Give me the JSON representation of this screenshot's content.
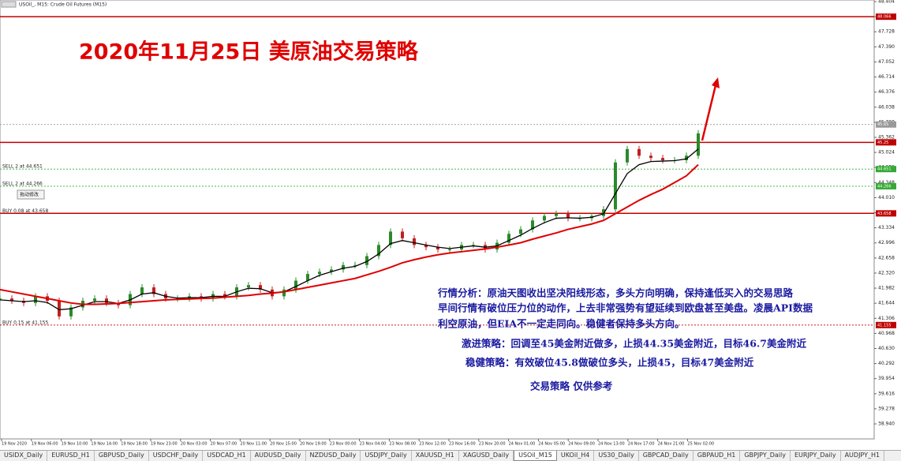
{
  "window_title": "USOil_, M15: Crude Oil Futures (M15)",
  "button": "拖动修改",
  "chart_data": {
    "type": "candlestick",
    "title": "2020年11月25日  美原油交易策略",
    "annotations": [
      "行情分析：原油天图收出坚决阳线形态，多头方向明确，保持逢低买入的交易思路",
      "早间行情有破位压力位的动作，上去非常强势有望延续到欧盘甚至美盘。凌晨API数据",
      "利空原油，但EIA不一定走同向。稳健者保持多头方向。",
      "激进策略：回调至45美金附近做多，止损44.35美金附近，目标46.7美金附近",
      "稳健策略：有效破位45.8做破位多头，止损45，目标47美金附近",
      "交易策略    仅供参考"
    ],
    "xlabels": [
      "19 Nov 2020",
      "19 Nov 06:00",
      "19 Nov 10:00",
      "19 Nov 14:00",
      "19 Nov 18:00",
      "19 Nov 23:00",
      "20 Nov 03:00",
      "20 Nov 07:00",
      "20 Nov 11:00",
      "20 Nov 15:00",
      "20 Nov 19:00",
      "23 Nov 00:00",
      "23 Nov 04:00",
      "23 Nov 08:00",
      "23 Nov 12:00",
      "23 Nov 16:00",
      "23 Nov 20:00",
      "24 Nov 01:00",
      "24 Nov 05:00",
      "24 Nov 09:00",
      "24 Nov 13:00",
      "24 Nov 17:00",
      "24 Nov 21:00",
      "25 Nov 02:00"
    ],
    "series": [
      {
        "color": "#222222",
        "values": [
          41.75,
          41.7,
          41.65,
          41.8,
          41.7,
          41.35,
          41.55,
          41.7,
          41.75,
          41.65,
          41.6,
          41.85,
          42.0,
          41.85,
          41.75,
          41.75,
          41.8,
          41.75,
          41.85,
          41.8,
          42.0,
          42.05,
          41.95,
          41.8,
          41.95,
          42.15,
          42.3,
          42.35,
          42.4,
          42.5,
          42.5,
          42.7,
          42.95,
          43.25,
          43.1,
          42.95,
          42.9,
          42.85,
          42.85,
          42.95,
          42.95,
          42.85,
          43.0,
          43.2,
          43.3,
          43.5,
          43.6,
          43.65,
          43.55,
          43.55,
          43.6,
          43.75,
          44.8,
          45.1,
          44.95,
          44.9,
          44.85,
          44.85,
          44.95,
          45.45
        ]
      },
      {
        "color": "#000000",
        "values": [
          41.72,
          41.7,
          41.68,
          41.7,
          41.66,
          41.5,
          41.52,
          41.6,
          41.68,
          41.68,
          41.64,
          41.72,
          41.85,
          41.88,
          41.8,
          41.76,
          41.77,
          41.77,
          41.8,
          41.8,
          41.9,
          41.98,
          41.97,
          41.88,
          41.9,
          42.02,
          42.15,
          42.27,
          42.35,
          42.43,
          42.47,
          42.58,
          42.75,
          42.98,
          43.05,
          43.0,
          42.95,
          42.9,
          42.87,
          42.9,
          42.93,
          42.9,
          42.93,
          43.05,
          43.17,
          43.32,
          43.45,
          43.55,
          43.56,
          43.55,
          43.57,
          43.65,
          44.1,
          44.55,
          44.75,
          44.82,
          44.83,
          44.84,
          44.88,
          45.1
        ]
      },
      {
        "color": "#e00000",
        "values": [
          41.95,
          41.9,
          41.85,
          41.8,
          41.75,
          41.7,
          41.65,
          41.62,
          41.62,
          41.63,
          41.64,
          41.66,
          41.68,
          41.7,
          41.72,
          41.73,
          41.74,
          41.75,
          41.76,
          41.78,
          41.8,
          41.82,
          41.85,
          41.87,
          41.9,
          41.95,
          42.0,
          42.05,
          42.1,
          42.15,
          42.2,
          42.28,
          42.36,
          42.45,
          42.55,
          42.62,
          42.68,
          42.73,
          42.77,
          42.8,
          42.83,
          42.86,
          42.9,
          42.95,
          43.0,
          43.08,
          43.15,
          43.22,
          43.3,
          43.36,
          43.42,
          43.5,
          43.65,
          43.8,
          43.95,
          44.08,
          44.2,
          44.35,
          44.5,
          44.75
        ]
      }
    ],
    "levels": [
      {
        "value": 48.066,
        "color": "#c00000"
      },
      {
        "value": 45.65,
        "color": "#999999"
      },
      {
        "value": 45.25,
        "color": "#c00000"
      },
      {
        "value": 44.651,
        "color": "#33aa33",
        "label": "SELL 2 at 44.651"
      },
      {
        "value": 44.266,
        "color": "#33aa33",
        "label": "SELL 2 at 44.266"
      },
      {
        "value": 43.658,
        "color": "#c00000",
        "label": "BUY 0.08 at 43.658"
      },
      {
        "value": 41.155,
        "color": "#c00000",
        "label": "BUY 0.15 at 41.155"
      }
    ],
    "ylim": [
      38.604,
      48.44
    ],
    "yticks": [
      48.404,
      48.066,
      47.728,
      {
        "value": 47.39,
        "label": "47.390"
      },
      47.052,
      46.714,
      46.376,
      46.038,
      {
        "value": 45.7,
        "label": "45.700"
      },
      45.362,
      45.024,
      44.686,
      44.348,
      {
        "value": 44.01,
        "label": "44.010"
      },
      43.672,
      43.334,
      42.996,
      42.658,
      {
        "value": 42.32,
        "label": "42.320"
      },
      41.982,
      41.644,
      41.306,
      40.968,
      {
        "value": 40.63,
        "label": "40.630"
      },
      40.292,
      39.954,
      39.616,
      39.278,
      {
        "value": 38.94,
        "label": "38.940"
      }
    ]
  },
  "tabs": [
    "USIDX_Daily",
    "EURUSD_H1",
    "GBPUSD_Daily",
    "USDCHF_Daily",
    "USDCAD_H1",
    "AUDUSD_Daily",
    "NZDUSD_Daily",
    "USDJPY_Daily",
    "XAUUSD_H1",
    "XAGUSD_Daily",
    "USOil_M15",
    "UKOil_H4",
    "US30_Daily",
    "GBPCAD_Daily",
    "GBPAUD_H1",
    "GBPJPY_Daily",
    "EURJPY_Daily",
    "AUDJPY_H1"
  ],
  "active_tab": 10
}
